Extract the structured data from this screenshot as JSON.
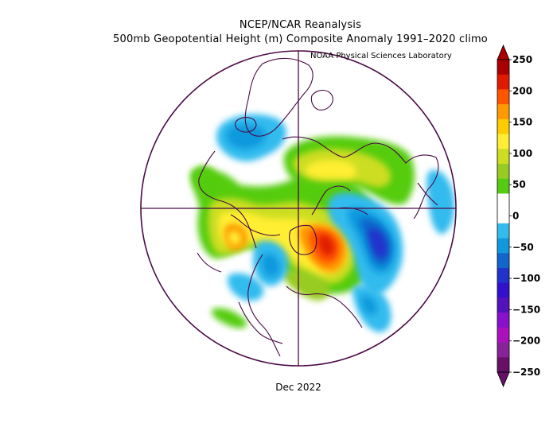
{
  "figure": {
    "title_line1": "NCEP/NCAR Reanalysis",
    "title_line2": "500mb Geopotential Height (m) Composite Anomaly 1991–2020 climo",
    "credit": "NOAA Physical Sciences Laboratory",
    "period": "Dec 2022"
  },
  "colorbar": {
    "ticks": [
      "250",
      "200",
      "150",
      "100",
      "50",
      "0",
      "−50",
      "−100",
      "−150",
      "−200",
      "−250"
    ],
    "colors": [
      "#aa0000",
      "#e01a00",
      "#ff5500",
      "#ff9900",
      "#ffcc00",
      "#ffee33",
      "#ccdd22",
      "#99cc22",
      "#55cc11",
      "#ffffff",
      "#ffffff",
      "#33bbee",
      "#1199dd",
      "#1166cc",
      "#2233cc",
      "#3311cc",
      "#5511bb",
      "#8811cc",
      "#aa11bb",
      "#882299",
      "#661166"
    ]
  }
}
